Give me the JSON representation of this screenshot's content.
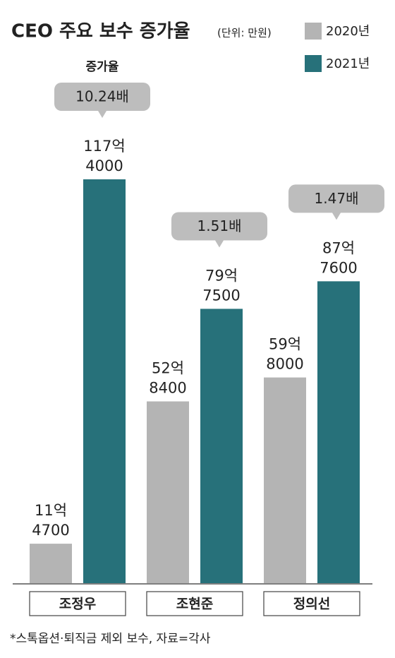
{
  "chart_data": {
    "type": "bar",
    "title": "CEO 주요 보수 증가율",
    "unit": "(단위: 만원)",
    "categories": [
      "조정우",
      "조현준",
      "정의선"
    ],
    "series": [
      {
        "name": "2020년",
        "color": "#b4b4b4",
        "values": [
          114700,
          528400,
          598000
        ],
        "value_labels": [
          [
            "11억",
            "4700"
          ],
          [
            "52억",
            "8400"
          ],
          [
            "59억",
            "8000"
          ]
        ]
      },
      {
        "name": "2021년",
        "color": "#27717a",
        "values": [
          1174000,
          797500,
          877600
        ],
        "value_labels": [
          [
            "117억",
            "4000"
          ],
          [
            "79억",
            "7500"
          ],
          [
            "87억",
            "7600"
          ]
        ]
      }
    ],
    "growth_label": "증가율",
    "growth_ratios": [
      "10.24배",
      "1.51배",
      "1.47배"
    ],
    "footnote": "*스톡옵션·퇴직금 제외 보수, 자료=각사"
  }
}
